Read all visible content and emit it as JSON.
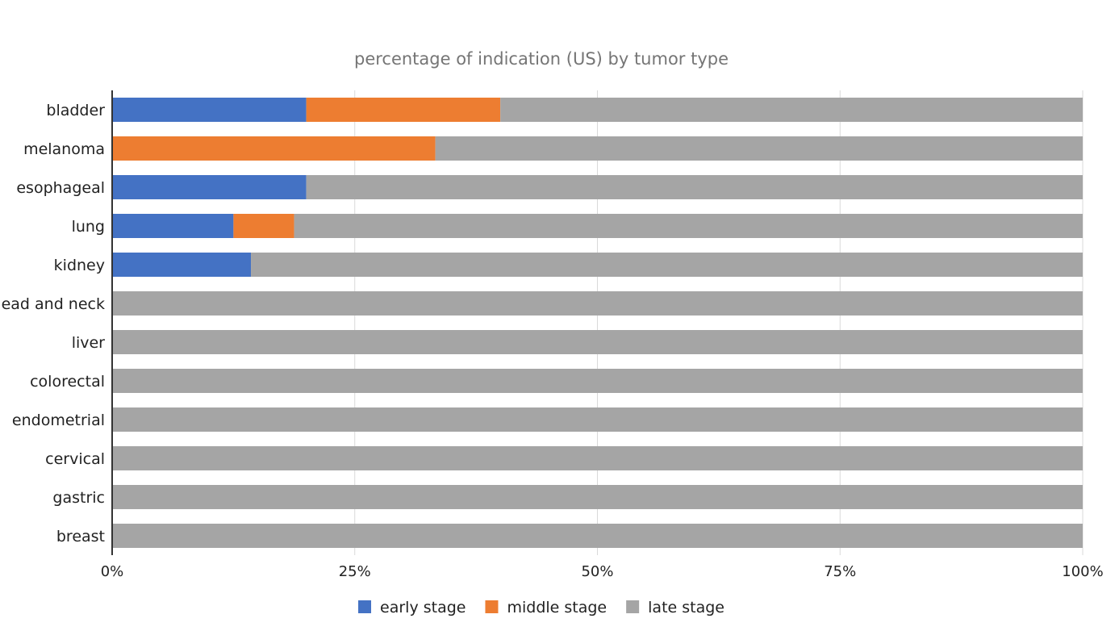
{
  "chart_data": {
    "type": "bar",
    "orientation": "horizontal",
    "stacked": "percent",
    "title": "percentage of indication (US) by tumor type",
    "xlabel": "",
    "ylabel": "",
    "categories": [
      "bladder",
      "melanoma",
      "esophageal",
      "lung",
      "kidney",
      "head and neck",
      "liver",
      "colorectal",
      "endometrial",
      "cervical",
      "gastric",
      "breast"
    ],
    "series": [
      {
        "name": "early stage",
        "color": "#4472C4",
        "values": [
          0.2,
          0.0,
          0.2,
          0.125,
          0.143,
          0,
          0,
          0,
          0,
          0,
          0,
          0
        ]
      },
      {
        "name": "middle stage",
        "color": "#ED7D31",
        "values": [
          0.2,
          0.333,
          0.0,
          0.0625,
          0.0,
          0,
          0,
          0,
          0,
          0,
          0,
          0
        ]
      },
      {
        "name": "late stage",
        "color": "#A5A5A5",
        "values": [
          0.6,
          0.667,
          0.8,
          0.8125,
          0.857,
          1,
          1,
          1,
          1,
          1,
          1,
          1
        ]
      }
    ],
    "xlim": [
      0,
      1
    ],
    "x_ticks": [
      "0%",
      "25%",
      "50%",
      "75%",
      "100%"
    ],
    "grid": true,
    "legend_position": "bottom"
  }
}
